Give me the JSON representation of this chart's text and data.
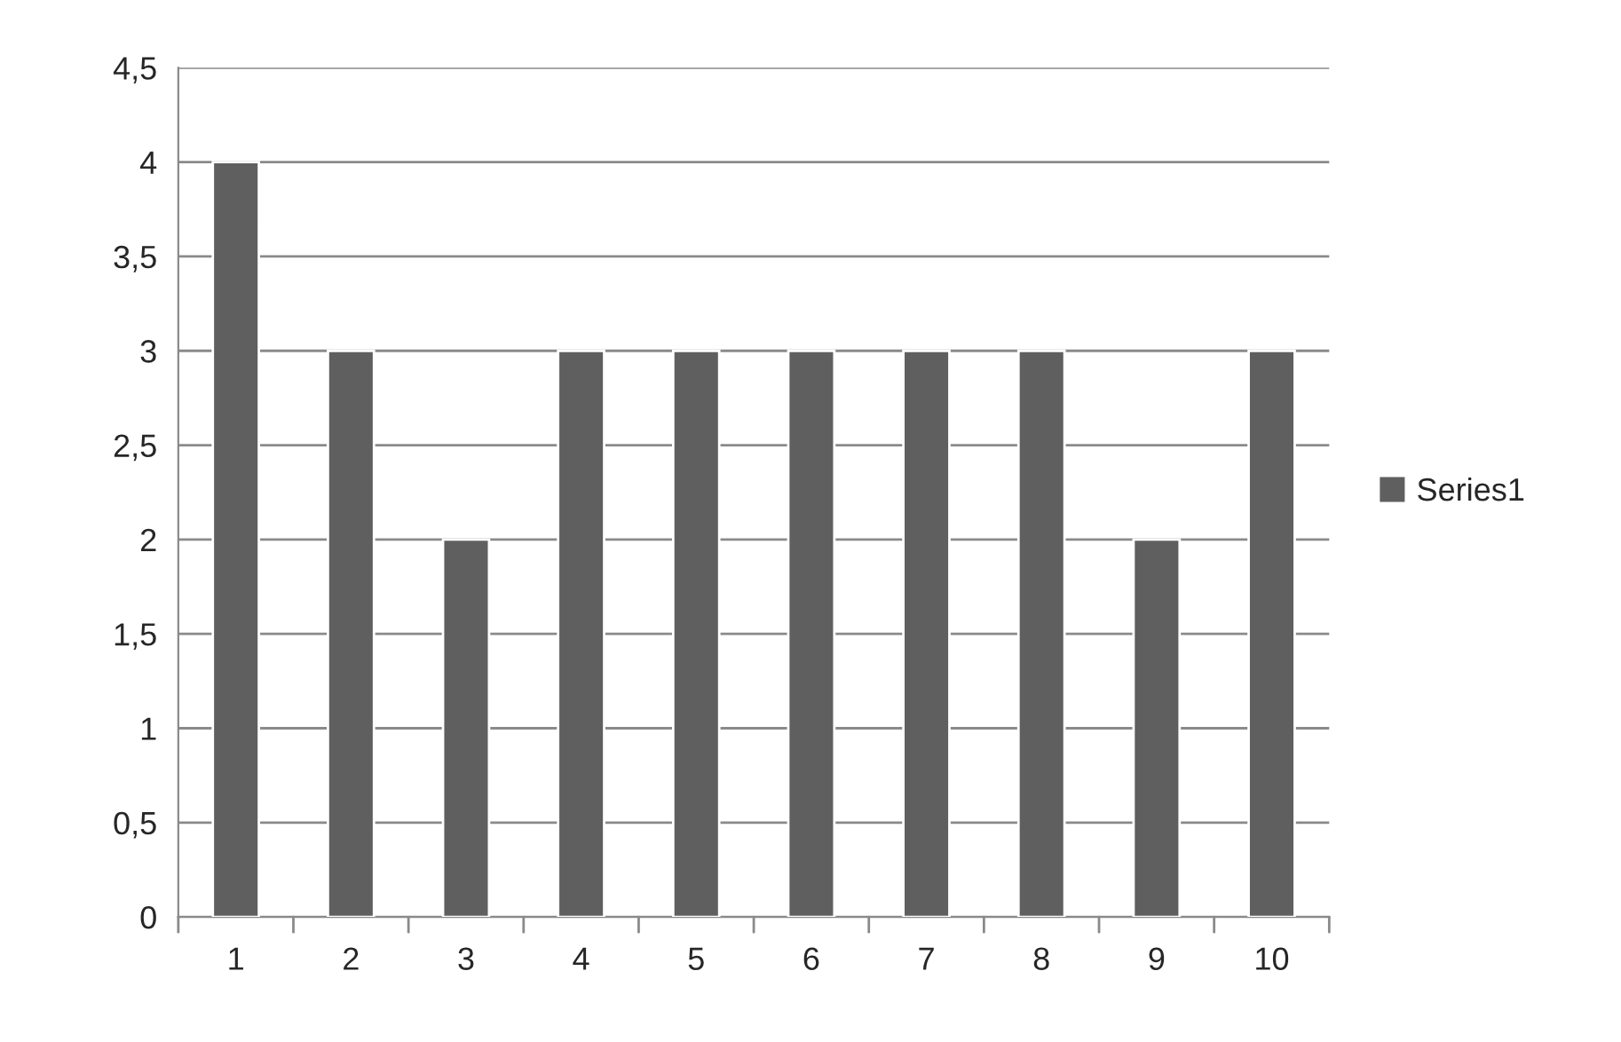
{
  "chart_data": {
    "type": "bar",
    "categories": [
      "1",
      "2",
      "3",
      "4",
      "5",
      "6",
      "7",
      "8",
      "9",
      "10"
    ],
    "series": [
      {
        "name": "Series1",
        "color": "#5f5f5f",
        "values": [
          4,
          3,
          2,
          3,
          3,
          3,
          3,
          3,
          2,
          3
        ]
      }
    ],
    "ylim": [
      0,
      4.5
    ],
    "yticks": [
      0,
      {
        "value": 0.5,
        "label": "0,5"
      },
      1,
      {
        "value": 1.5,
        "label": "1,5"
      },
      2,
      {
        "value": 2.5,
        "label": "2,5"
      },
      3,
      {
        "value": 3.5,
        "label": "3,5"
      },
      4,
      {
        "value": 4.5,
        "label": "4,5"
      }
    ],
    "grid": "y",
    "legend": "right"
  }
}
